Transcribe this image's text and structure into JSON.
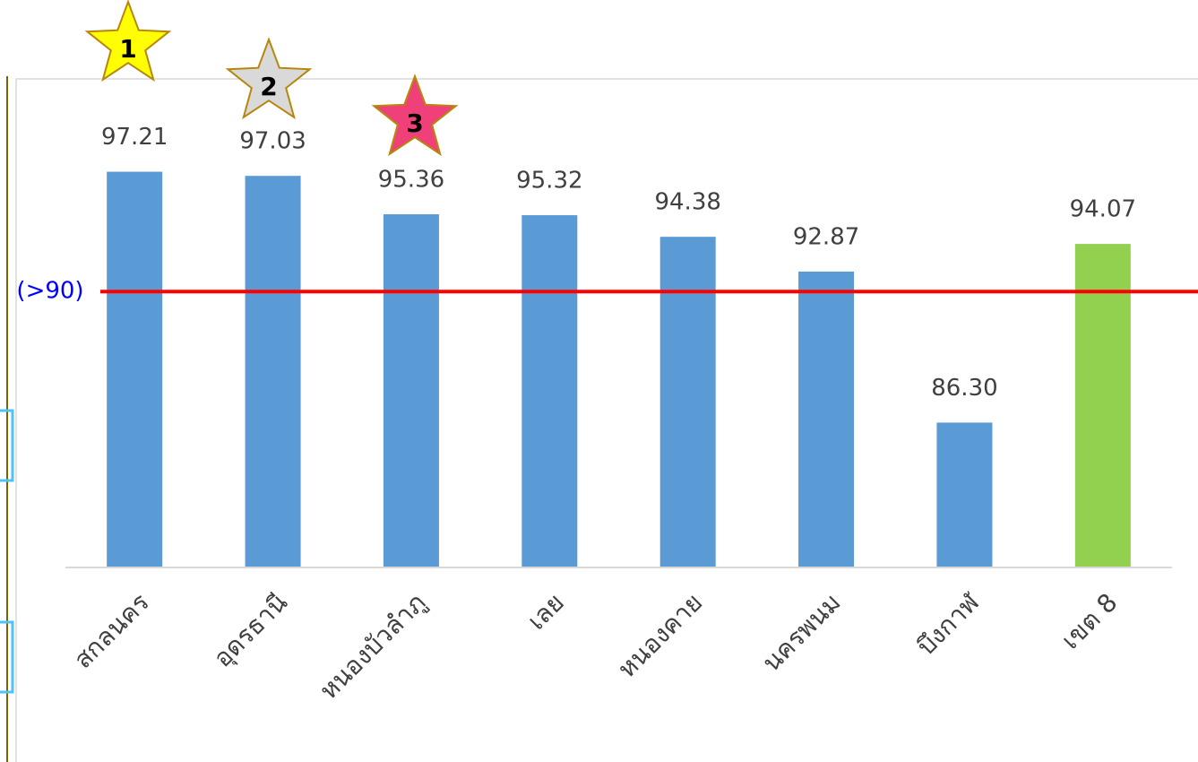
{
  "chart_data": {
    "type": "bar",
    "categories": [
      "สกลนคร",
      "อุดรธานี",
      "หนองบัวลำภู",
      "เลย",
      "หนองคาย",
      "นครพนม",
      "บึงกาฬ",
      "เขต 8"
    ],
    "values": [
      97.21,
      97.03,
      95.36,
      95.32,
      94.38,
      92.87,
      86.3,
      94.07
    ],
    "value_labels": [
      "97.21",
      "97.03",
      "95.36",
      "95.32",
      "94.38",
      "92.87",
      "86.30",
      "94.07"
    ],
    "colors": [
      "#5b9bd5",
      "#5b9bd5",
      "#5b9bd5",
      "#5b9bd5",
      "#5b9bd5",
      "#5b9bd5",
      "#5b9bd5",
      "#92d050"
    ],
    "ylim": [
      80,
      100
    ],
    "reference_line": {
      "value": 92,
      "label": "(>90)",
      "color": "#ff0000"
    },
    "annotations": [
      {
        "label": "1",
        "color": "#ffff00"
      },
      {
        "label": "2",
        "color": "#d9d9d9"
      },
      {
        "label": "3",
        "color": "#f0407a"
      }
    ]
  }
}
